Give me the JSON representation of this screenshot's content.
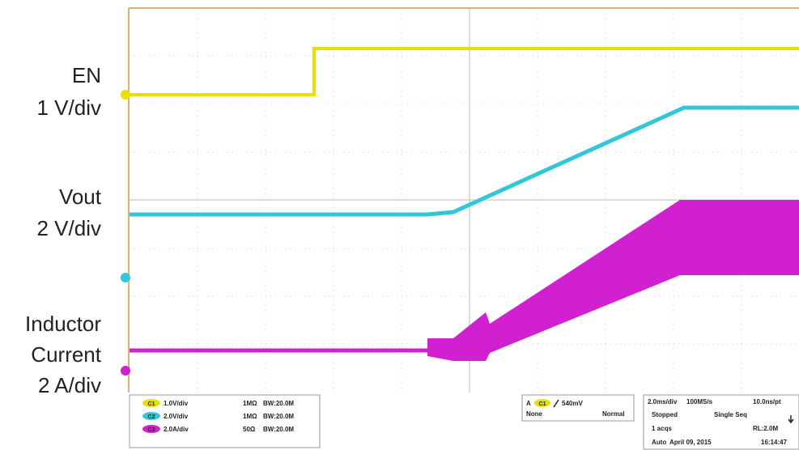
{
  "channel_labels": [
    [
      "EN",
      "1 V/div"
    ],
    [
      "Vout",
      "2 V/div"
    ],
    [
      "Inductor",
      "Current",
      "2 A/div"
    ]
  ],
  "channel_settings": [
    {
      "badge": "C1",
      "scale": "1.0V/div",
      "impedance": "1MΩ",
      "bandwidth": "BW:20.0M"
    },
    {
      "badge": "C2",
      "scale": "2.0V/div",
      "impedance": "1MΩ",
      "bandwidth": "BW:20.0M"
    },
    {
      "badge": "C3",
      "scale": "2.0A/div",
      "impedance": "50Ω",
      "bandwidth": "BW:20.0M"
    }
  ],
  "trigger": {
    "source": "A",
    "badge": "C1",
    "level": "540mV",
    "delay": "None",
    "mode": "Normal"
  },
  "acquisition": {
    "timebase": "2.0ms/div",
    "sample_rate": "100MS/s",
    "resolution": "10.0ns/pt",
    "state": "Stopped",
    "run_mode": "Single Seq",
    "acqs": "1 acqs",
    "record_length": "RL:2.0M",
    "auto": "Auto",
    "date": "April 09, 2015",
    "time": "16:14:47"
  }
}
